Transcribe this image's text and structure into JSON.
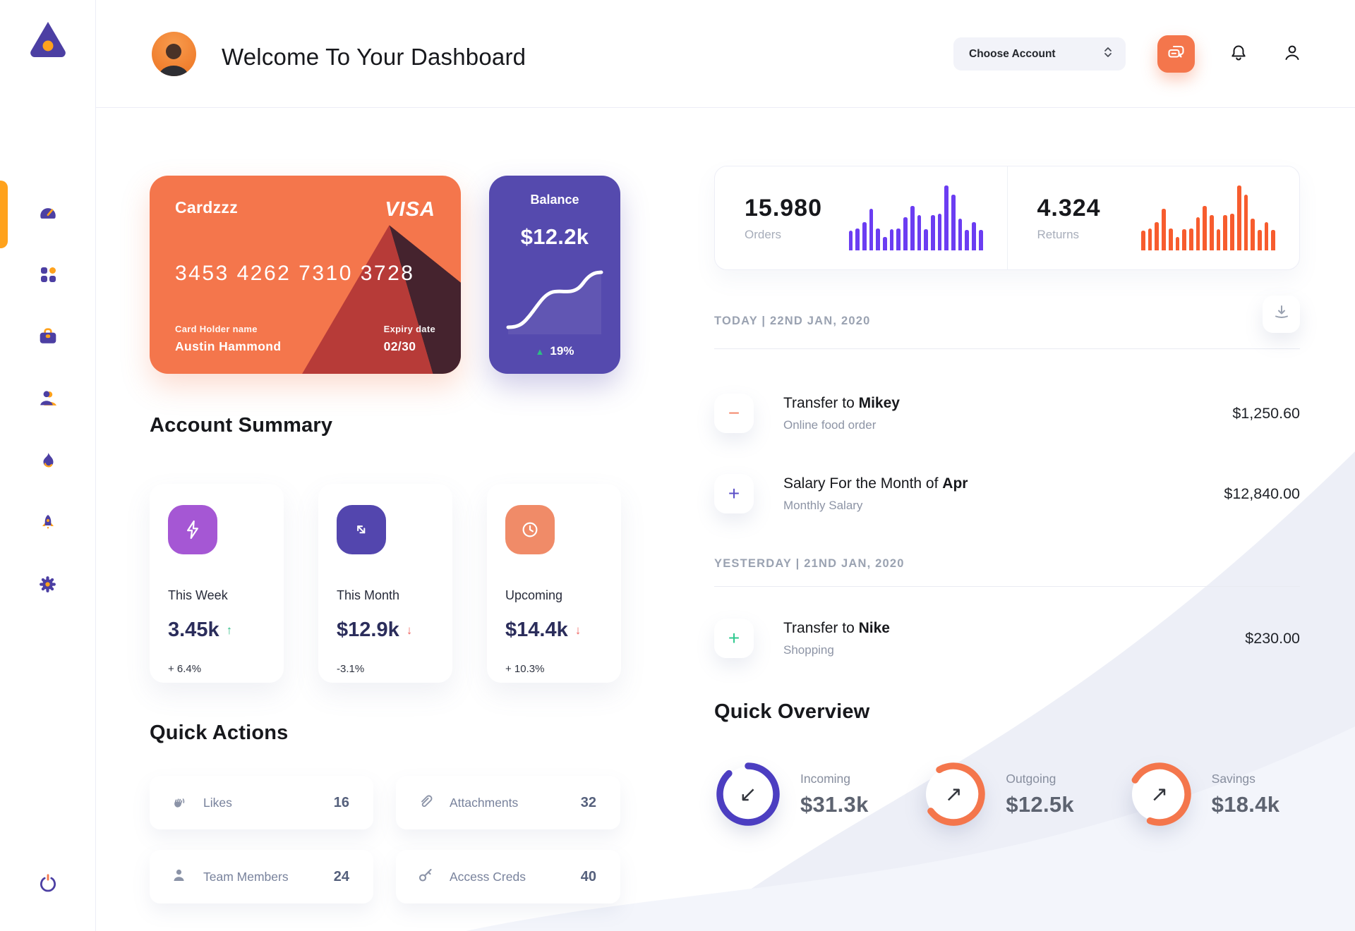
{
  "colors": {
    "green": "#2ebd85",
    "red": "#ef6461",
    "orange": "#f4764c",
    "purple": "#554aae",
    "navy": "#2b2d5b"
  },
  "sidebar": {
    "items": [
      {
        "icon": "speedometer-icon",
        "active": true
      },
      {
        "icon": "grid-icon",
        "active": false
      },
      {
        "icon": "briefcase-icon",
        "active": false
      },
      {
        "icon": "user-icon",
        "active": false
      },
      {
        "icon": "flame-icon",
        "active": false
      },
      {
        "icon": "rocket-icon",
        "active": false
      },
      {
        "icon": "gear-icon",
        "active": false
      }
    ],
    "logout_icon": "power-icon"
  },
  "header": {
    "title": "Welcome To Your Dashboard",
    "account_selector_label": "Choose Account",
    "chat_icon": "chat-bubbles-icon",
    "bell_icon": "bell-icon",
    "profile_icon": "person-icon"
  },
  "credit_card": {
    "name": "Cardzzz",
    "brand": "VISA",
    "number": "3453 4262 7310 3728",
    "holder_label": "Card Holder name",
    "holder": "Austin Hammond",
    "expiry_label": "Expiry date",
    "expiry": "02/30"
  },
  "balance_card": {
    "label": "Balance",
    "value": "$12.2k",
    "trend_arrow": "▲",
    "change": "19%"
  },
  "account_summary": {
    "title": "Account Summary",
    "cards": [
      {
        "icon": "lightning-icon",
        "icon_bg": "#a557d4",
        "label": "This Week",
        "value": "3.45k",
        "trend_arrow": "↑",
        "trend_color": "#2ebd85",
        "change": "+ 6.4%"
      },
      {
        "icon": "diagonal-arrows-icon",
        "icon_bg": "#5346ae",
        "label": "This Month",
        "value": "$12.9k",
        "trend_arrow": "↓",
        "trend_color": "#ef6461",
        "change": "-3.1%"
      },
      {
        "icon": "clock-icon",
        "icon_bg": "#f08b68",
        "label": "Upcoming",
        "value": "$14.4k",
        "trend_arrow": "↓",
        "trend_color": "#ef6461",
        "change": "+ 10.3%"
      }
    ]
  },
  "quick_actions": {
    "title": "Quick Actions",
    "items": [
      {
        "icon": "clap-icon",
        "label": "Likes",
        "count": "16"
      },
      {
        "icon": "paperclip-icon",
        "label": "Attachments",
        "count": "32"
      },
      {
        "icon": "member-icon",
        "label": "Team Members",
        "count": "24"
      },
      {
        "icon": "key-icon",
        "label": "Access Creds",
        "count": "40"
      }
    ]
  },
  "chart_data": [
    {
      "type": "bar",
      "name": "orders",
      "value": "15.980",
      "label": "Orders",
      "color": "#6b3df2",
      "values": [
        30,
        34,
        44,
        64,
        34,
        21,
        33,
        34,
        51,
        69,
        54,
        33,
        54,
        56,
        100,
        86,
        49,
        31,
        44,
        31
      ]
    },
    {
      "type": "bar",
      "name": "returns",
      "value": "4.324",
      "label": "Returns",
      "color": "#f75c2e",
      "values": [
        30,
        34,
        44,
        64,
        34,
        21,
        33,
        34,
        51,
        69,
        54,
        33,
        54,
        56,
        100,
        86,
        49,
        31,
        44,
        31
      ]
    },
    {
      "type": "line",
      "name": "balance-sparkline",
      "color": "#ffffff",
      "points": [
        2,
        2.05,
        2.5,
        3.6,
        5.0,
        6.3,
        7.0,
        7.1,
        7.05,
        7.1,
        7.6,
        9.0,
        9.7,
        9.8
      ]
    }
  ],
  "transactions": {
    "download_icon": "download-icon",
    "groups": [
      {
        "date_label": "TODAY | 22ND JAN, 2020",
        "rows": [
          {
            "sign": "−",
            "sign_color": "#f4876a",
            "title_prefix": "Transfer to ",
            "title_bold": "Mikey",
            "subtitle": "Online food order",
            "amount": "$1,250.60"
          },
          {
            "sign": "+",
            "sign_color": "#5b4fc7",
            "title_prefix": "Salary For the Month of ",
            "title_bold": "Apr",
            "subtitle": "Monthly Salary",
            "amount": "$12,840.00"
          }
        ]
      },
      {
        "date_label": "YESTERDAY | 21ND JAN, 2020",
        "rows": [
          {
            "sign": "+",
            "sign_color": "#2fc98f",
            "title_prefix": "Transfer to ",
            "title_bold": "Nike",
            "subtitle": "Shopping",
            "amount": "$230.00"
          }
        ]
      }
    ]
  },
  "quick_overview": {
    "title": "Quick Overview",
    "items": [
      {
        "label": "Incoming",
        "value": "$31.3k",
        "percent": 0.88,
        "color": "#4c3ec1",
        "arrow": "↙",
        "arrow_icon": "arrow-down-left-icon"
      },
      {
        "label": "Outgoing",
        "value": "$12.5k",
        "percent": 0.73,
        "color": "#f4764c",
        "arrow": "↗",
        "arrow_icon": "arrow-up-right-icon"
      },
      {
        "label": "Savings",
        "value": "$18.4k",
        "percent": 0.72,
        "color": "#f4764c",
        "arrow": "↗",
        "arrow_icon": "arrow-up-right-icon"
      }
    ]
  }
}
